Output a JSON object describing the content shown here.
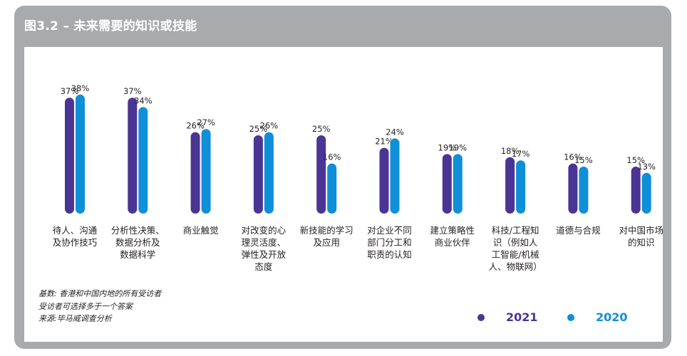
{
  "title": "图3.2 – 未来需要的知识或技能",
  "colors": {
    "2021": "#4a3594",
    "2020": "#0f8fd8"
  },
  "chart_data": {
    "type": "bar",
    "ylim": [
      0,
      40
    ],
    "categories": [
      [
        "待人、沟通",
        "及协作技巧"
      ],
      [
        "分析性决策、",
        "数据分析及",
        "数据科学"
      ],
      [
        "商业触觉"
      ],
      [
        "对改变的心",
        "理灵活度、",
        "弹性及开放",
        "态度"
      ],
      [
        "新技能的学习",
        "及应用"
      ],
      [
        "对企业不同",
        "部门分工和",
        "职责的认知"
      ],
      [
        "建立策略性",
        "商业伙伴"
      ],
      [
        "科技/工程知",
        "识（例如人",
        "工智能/机械",
        "人、物联网）"
      ],
      [
        "道德与合规"
      ],
      [
        "对中国市场",
        "的知识"
      ]
    ],
    "series": [
      {
        "name": "2021",
        "values": [
          37,
          37,
          26,
          25,
          25,
          21,
          19,
          18,
          16,
          15
        ],
        "labels": [
          "37%",
          "37%",
          "26%",
          "25%",
          "25%",
          "21%",
          "19%",
          "18%",
          "16%",
          "15%"
        ]
      },
      {
        "name": "2020",
        "values": [
          38,
          34,
          27,
          26,
          16,
          24,
          19,
          17,
          15,
          13
        ],
        "labels": [
          "38%",
          "34%",
          "27%",
          "26%",
          "16%",
          "24%",
          "19%",
          "17%",
          "15%",
          "13%"
        ]
      }
    ]
  },
  "footnotes": [
    "基数: 香港和中国内地的所有受访者",
    "受访者可选择多于一个答案",
    "来源:毕马威调查分析"
  ],
  "legend": [
    {
      "label": "2021",
      "color": "#4a3594"
    },
    {
      "label": "2020",
      "color": "#0f8fd8"
    }
  ]
}
